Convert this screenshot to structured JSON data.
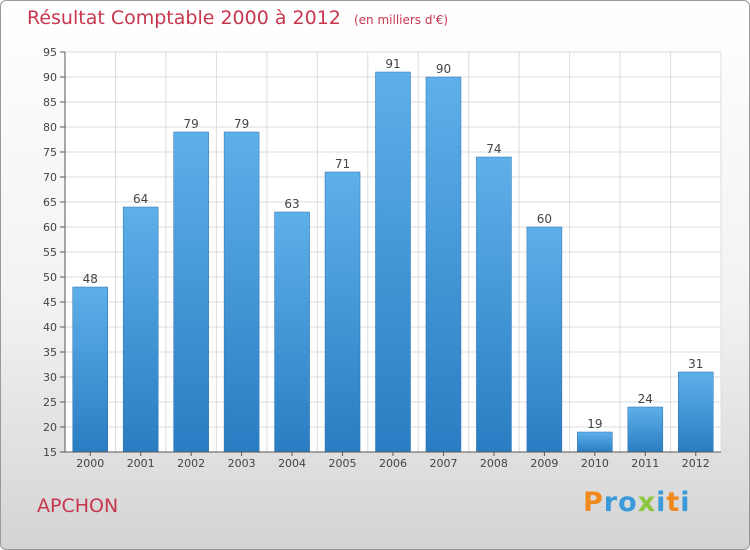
{
  "title": "Résultat Comptable 2000 à 2012",
  "subtitle": "(en milliers d'€)",
  "commune": "APCHON",
  "logo": {
    "letters": [
      "P",
      "r",
      "o",
      "x",
      "i",
      "t",
      "i"
    ],
    "colors": [
      "#f08a1e",
      "#3a9ad9",
      "#3a9ad9",
      "#8cc63f",
      "#3a9ad9",
      "#f08a1e",
      "#3a9ad9"
    ]
  },
  "colors": {
    "bar_light": "#5eb0ea",
    "bar_dark": "#2a7dc2",
    "accent": "#c8364e"
  },
  "chart_data": {
    "type": "bar",
    "title": "Résultat Comptable 2000 à 2012",
    "ylabel": "",
    "xlabel": "",
    "categories": [
      "2000",
      "2001",
      "2002",
      "2003",
      "2004",
      "2005",
      "2006",
      "2007",
      "2008",
      "2009",
      "2010",
      "2011",
      "2012"
    ],
    "values": [
      48,
      64,
      79,
      79,
      63,
      71,
      91,
      90,
      74,
      60,
      19,
      24,
      31
    ],
    "ylim": [
      15,
      95
    ],
    "yticks": [
      15,
      20,
      25,
      30,
      35,
      40,
      45,
      50,
      55,
      60,
      65,
      70,
      75,
      80,
      85,
      90,
      95
    ],
    "grid": true
  }
}
